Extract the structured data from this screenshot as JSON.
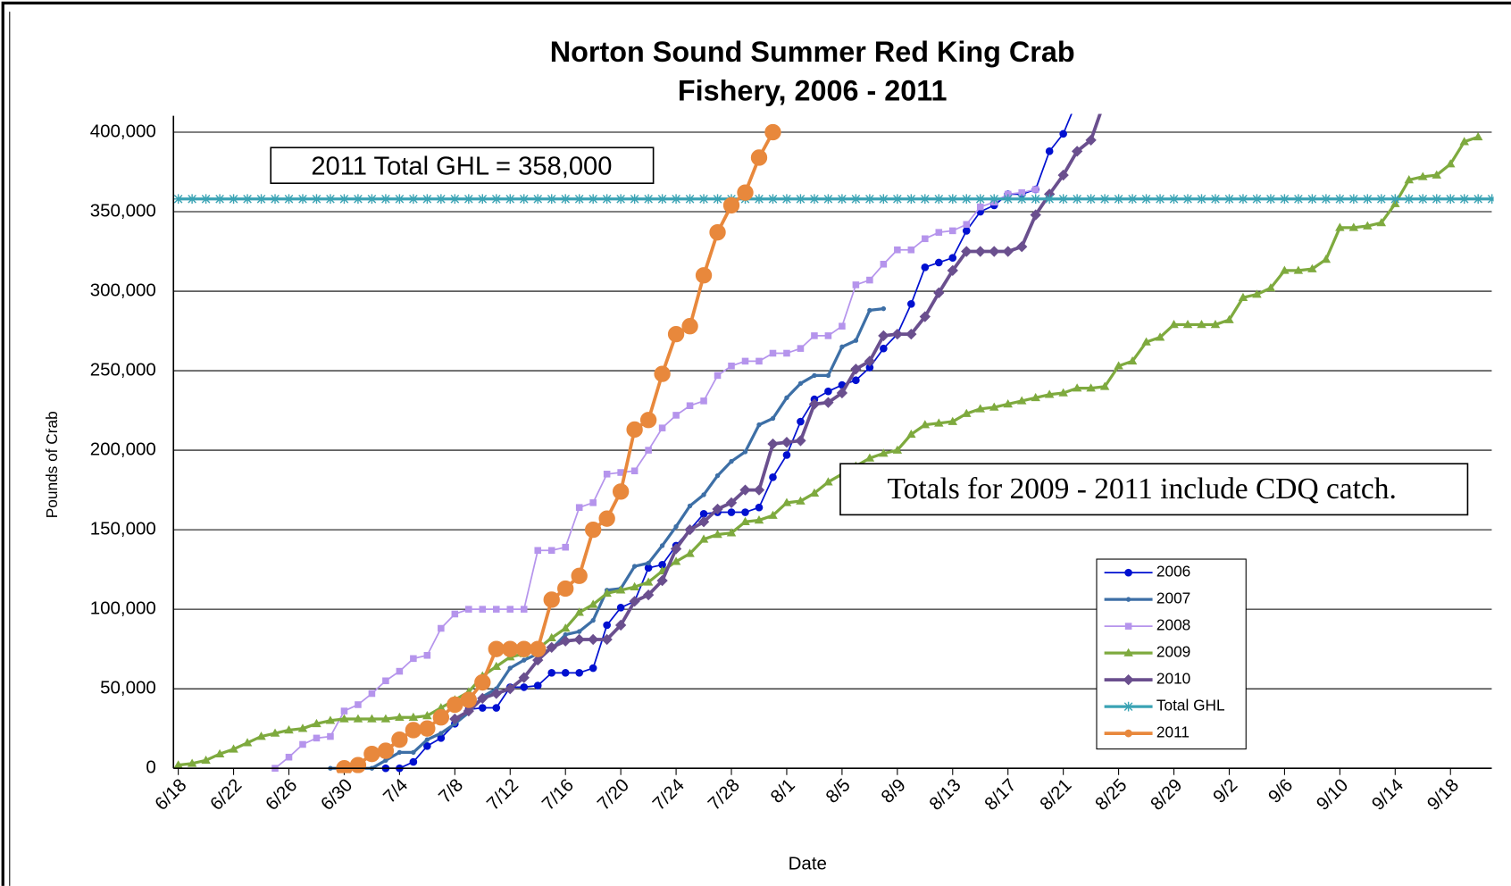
{
  "chart_data": {
    "type": "line",
    "title": [
      "Norton Sound Summer Red King Crab",
      "Fishery, 2006 - 2011"
    ],
    "xlabel": "Date",
    "ylabel": "Pounds of Crab",
    "annotations": [
      "2011 Total GHL = 358,000",
      "Totals for 2009 - 2011 include CDQ catch."
    ],
    "grid": true,
    "legend": "lower right",
    "ylim": [
      0,
      400000
    ],
    "yticks": [
      0,
      {
        "value": 50000,
        "label": "50,000"
      },
      {
        "value": 100000,
        "label": "100,000"
      },
      {
        "value": 150000,
        "label": "150,000"
      },
      {
        "value": 200000,
        "label": "200,000"
      },
      {
        "value": 250000,
        "label": "250,000"
      },
      {
        "value": 300000,
        "label": "300,000"
      },
      {
        "value": 350000,
        "label": "350,000"
      },
      {
        "value": 400000,
        "label": "400,000"
      }
    ],
    "x": [
      "6/18",
      null,
      null,
      null,
      "6/22",
      null,
      null,
      null,
      "6/26",
      null,
      null,
      null,
      "6/30",
      null,
      null,
      null,
      "7/4",
      null,
      null,
      null,
      "7/8",
      null,
      null,
      null,
      "7/12",
      null,
      null,
      null,
      "7/16",
      null,
      null,
      null,
      "7/20",
      null,
      null,
      null,
      "7/24",
      null,
      null,
      null,
      "7/28",
      null,
      null,
      null,
      "8/1",
      null,
      null,
      null,
      "8/5",
      null,
      null,
      null,
      "8/9",
      null,
      null,
      null,
      "8/13",
      null,
      null,
      null,
      "8/17",
      null,
      null,
      null,
      "8/21",
      null,
      null,
      null,
      "8/25",
      null,
      null,
      null,
      "8/29",
      null,
      null,
      null,
      "9/2",
      null,
      null,
      null,
      "9/6",
      null,
      null,
      null,
      "9/10",
      null,
      null,
      null,
      "9/14",
      null,
      null,
      null,
      "9/18",
      null,
      null,
      null
    ],
    "series": [
      {
        "name": "2006",
        "color": "#0010d0",
        "marker": "circle",
        "width": 1.6,
        "values": [
          null,
          null,
          null,
          null,
          null,
          null,
          null,
          null,
          null,
          null,
          null,
          null,
          null,
          null,
          null,
          0,
          0,
          4000,
          14000,
          19000,
          28000,
          37000,
          38000,
          38000,
          51000,
          51000,
          52000,
          60000,
          60000,
          60000,
          63000,
          90000,
          101000,
          105000,
          126000,
          128000,
          140000,
          150000,
          160000,
          161000,
          161000,
          161000,
          164000,
          183000,
          197000,
          218000,
          232000,
          237000,
          241000,
          244000,
          252000,
          264000,
          273000,
          292000,
          315000,
          318000,
          321000,
          338000,
          350000,
          354000,
          361000,
          361000,
          364000,
          388000,
          399000,
          420000,
          null,
          null,
          null,
          null,
          null,
          null,
          null,
          null,
          null,
          null,
          null,
          null,
          null,
          null,
          null,
          null,
          null,
          null,
          null,
          null,
          null,
          null,
          null,
          null,
          null,
          null,
          null,
          null,
          null,
          null
        ]
      },
      {
        "name": "2007",
        "color": "#3d6fa6",
        "marker": "dot",
        "width": 3,
        "values": [
          null,
          null,
          null,
          null,
          null,
          null,
          null,
          null,
          null,
          null,
          null,
          0,
          0,
          0,
          0,
          5000,
          10000,
          10000,
          18000,
          22000,
          28000,
          35000,
          45000,
          50000,
          63000,
          68000,
          72000,
          75000,
          84000,
          86000,
          93000,
          112000,
          113000,
          127000,
          129000,
          140000,
          152000,
          165000,
          172000,
          184000,
          193000,
          199000,
          216000,
          220000,
          233000,
          242000,
          247000,
          247000,
          265000,
          269000,
          288000,
          289000,
          null,
          null,
          null,
          null,
          null,
          null,
          null,
          null,
          null,
          null,
          null,
          null,
          null,
          null,
          null,
          null,
          null,
          null,
          null,
          null,
          null,
          null,
          null,
          null,
          null,
          null,
          null,
          null,
          null,
          null,
          null,
          null,
          null,
          null,
          null,
          null,
          null,
          null,
          null,
          null,
          null,
          null,
          null,
          null
        ]
      },
      {
        "name": "2008",
        "color": "#b594ec",
        "marker": "square",
        "width": 1.6,
        "values": [
          null,
          null,
          null,
          null,
          null,
          null,
          null,
          0,
          7000,
          15000,
          19000,
          20000,
          36000,
          40000,
          47000,
          55000,
          61000,
          69000,
          71000,
          88000,
          97000,
          100000,
          100000,
          100000,
          100000,
          100000,
          137000,
          137000,
          139000,
          164000,
          167000,
          185000,
          186000,
          187000,
          200000,
          214000,
          222000,
          228000,
          231000,
          247000,
          253000,
          256000,
          256000,
          261000,
          261000,
          264000,
          272000,
          272000,
          278000,
          304000,
          307000,
          317000,
          326000,
          326000,
          333000,
          337000,
          338000,
          342000,
          353000,
          356000,
          361000,
          362000,
          364000,
          null,
          null,
          null,
          null,
          null,
          null,
          null,
          null,
          null,
          null,
          null,
          null,
          null,
          null,
          null,
          null,
          null,
          null,
          null,
          null,
          null,
          null,
          null,
          null,
          null,
          null,
          null,
          null,
          null,
          null,
          null,
          null,
          null
        ]
      },
      {
        "name": "2009",
        "color": "#7eaa3e",
        "marker": "triangle",
        "width": 3,
        "values": [
          2000,
          3000,
          5000,
          9000,
          12000,
          16000,
          20000,
          22000,
          24000,
          25000,
          28000,
          30000,
          31000,
          31000,
          31000,
          31000,
          32000,
          32000,
          33000,
          38000,
          43000,
          48000,
          58000,
          64000,
          70000,
          72000,
          75000,
          82000,
          88000,
          98000,
          103000,
          110000,
          112000,
          114000,
          117000,
          124000,
          130000,
          135000,
          144000,
          147000,
          148000,
          155000,
          156000,
          159000,
          167000,
          168000,
          173000,
          180000,
          185000,
          190000,
          195000,
          198000,
          200000,
          210000,
          216000,
          217000,
          218000,
          223000,
          226000,
          227000,
          229000,
          231000,
          233000,
          235000,
          236000,
          239000,
          239000,
          240000,
          253000,
          256000,
          268000,
          271000,
          279000,
          279000,
          279000,
          279000,
          282000,
          296000,
          298000,
          302000,
          313000,
          313000,
          314000,
          320000,
          340000,
          340000,
          341000,
          343000,
          355000,
          370000,
          372000,
          373000,
          380000,
          394000,
          397000,
          null
        ]
      },
      {
        "name": "2010",
        "color": "#6a4f8e",
        "marker": "diamond",
        "width": 3.5,
        "values": [
          null,
          null,
          null,
          null,
          null,
          null,
          null,
          null,
          null,
          null,
          null,
          null,
          null,
          null,
          null,
          null,
          null,
          null,
          null,
          null,
          31000,
          36000,
          44000,
          47000,
          50000,
          57000,
          68000,
          76000,
          80000,
          81000,
          81000,
          81000,
          90000,
          105000,
          109000,
          118000,
          138000,
          150000,
          155000,
          163000,
          167000,
          175000,
          175000,
          204000,
          205000,
          206000,
          229000,
          230000,
          236000,
          251000,
          256000,
          272000,
          273000,
          273000,
          284000,
          299000,
          313000,
          325000,
          325000,
          325000,
          325000,
          328000,
          348000,
          361000,
          373000,
          388000,
          395000,
          420000,
          null,
          null,
          null,
          null,
          null,
          null,
          null,
          null,
          null,
          null,
          null,
          null,
          null,
          null,
          null,
          null,
          null,
          null,
          null,
          null,
          null,
          null,
          null,
          null,
          null,
          null,
          null,
          null
        ]
      },
      {
        "name": "Total GHL",
        "color": "#3aa3b4",
        "marker": "star",
        "width": 3,
        "values": [
          358000,
          358000,
          358000,
          358000,
          358000,
          358000,
          358000,
          358000,
          358000,
          358000,
          358000,
          358000,
          358000,
          358000,
          358000,
          358000,
          358000,
          358000,
          358000,
          358000,
          358000,
          358000,
          358000,
          358000,
          358000,
          358000,
          358000,
          358000,
          358000,
          358000,
          358000,
          358000,
          358000,
          358000,
          358000,
          358000,
          358000,
          358000,
          358000,
          358000,
          358000,
          358000,
          358000,
          358000,
          358000,
          358000,
          358000,
          358000,
          358000,
          358000,
          358000,
          358000,
          358000,
          358000,
          358000,
          358000,
          358000,
          358000,
          358000,
          358000,
          358000,
          358000,
          358000,
          358000,
          358000,
          358000,
          358000,
          358000,
          358000,
          358000,
          358000,
          358000,
          358000,
          358000,
          358000,
          358000,
          358000,
          358000,
          358000,
          358000,
          358000,
          358000,
          358000,
          358000,
          358000,
          358000,
          358000,
          358000,
          358000,
          358000,
          358000,
          358000,
          358000,
          358000,
          358000,
          358000
        ]
      },
      {
        "name": "2011",
        "color": "#e8883c",
        "marker": "bigcircle",
        "width": 3.5,
        "values": [
          null,
          null,
          null,
          null,
          null,
          null,
          null,
          null,
          null,
          null,
          null,
          null,
          0,
          2000,
          9000,
          11000,
          18000,
          24000,
          25000,
          32000,
          40000,
          43000,
          54000,
          75000,
          75000,
          75000,
          75000,
          106000,
          113000,
          121000,
          150000,
          157000,
          174000,
          213000,
          219000,
          248000,
          273000,
          278000,
          310000,
          337000,
          354000,
          362000,
          384000,
          400000,
          null,
          null,
          null,
          null,
          null,
          null,
          null,
          null,
          null,
          null,
          null,
          null,
          null,
          null,
          null,
          null,
          null,
          null,
          null,
          null,
          null,
          null,
          null,
          null,
          null,
          null,
          null,
          null,
          null,
          null,
          null,
          null,
          null,
          null,
          null,
          null,
          null,
          null,
          null,
          null,
          null,
          null,
          null,
          null,
          null,
          null,
          null,
          null,
          null,
          null,
          null,
          null
        ]
      }
    ]
  }
}
